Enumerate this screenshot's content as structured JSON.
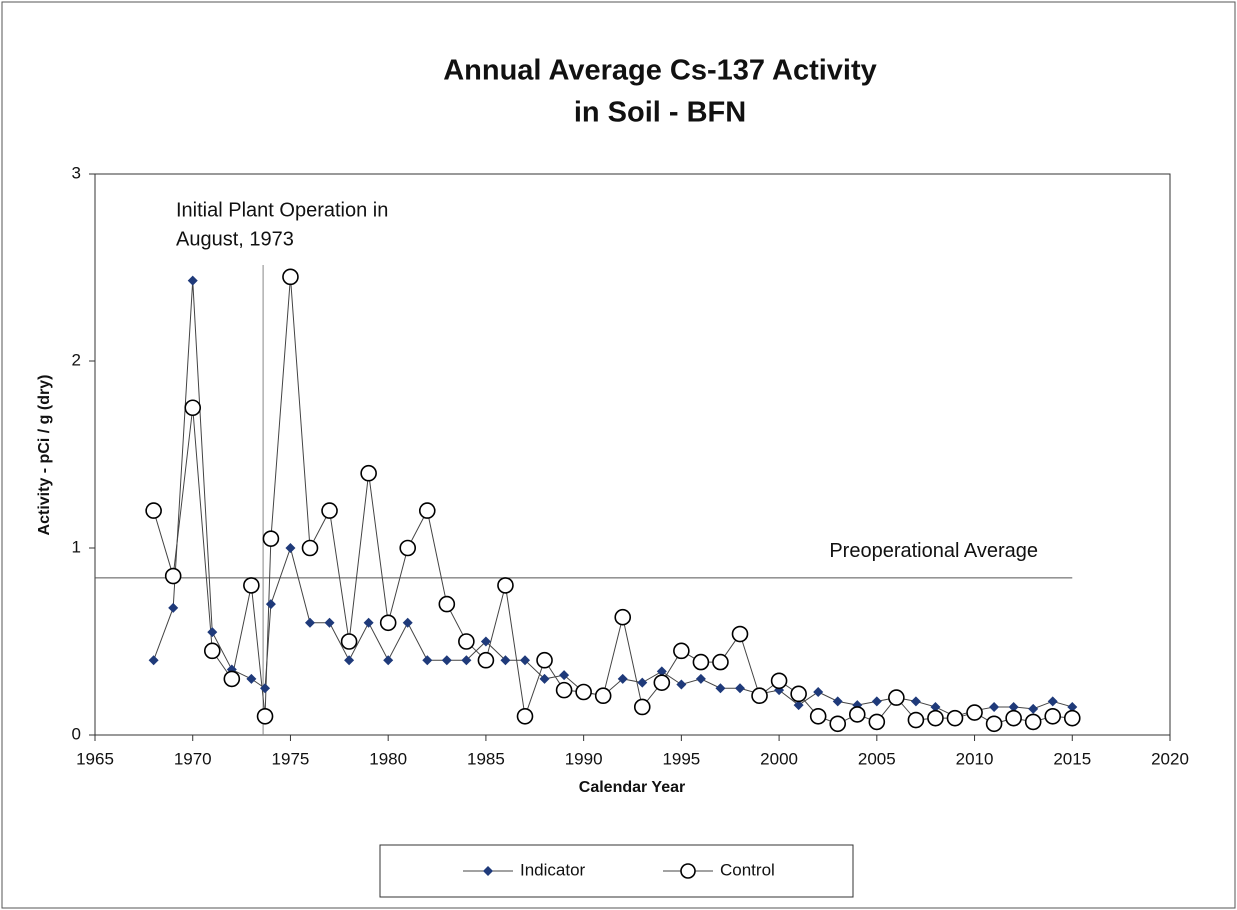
{
  "chart_data": {
    "type": "line",
    "title": [
      "Annual Average Cs-137 Activity",
      "in Soil - BFN"
    ],
    "x_label": "Calendar Year",
    "y_label": "Activity  -  pCi / g (dry)",
    "x": [
      1968,
      1969,
      1970,
      1971,
      1972,
      1973,
      1973.7,
      1974,
      1975,
      1976,
      1977,
      1978,
      1979,
      1980,
      1981,
      1982,
      1983,
      1984,
      1985,
      1986,
      1987,
      1988,
      1989,
      1990,
      1991,
      1992,
      1993,
      1994,
      1995,
      1996,
      1997,
      1998,
      1999,
      2000,
      2001,
      2002,
      2003,
      2004,
      2005,
      2006,
      2007,
      2008,
      2009,
      2010,
      2011,
      2012,
      2013,
      2014,
      2015
    ],
    "series": [
      {
        "name": "Indicator",
        "color": "#1f3a7a",
        "marker": "diamond",
        "values": [
          0.4,
          0.68,
          2.43,
          0.55,
          0.35,
          0.3,
          0.25,
          0.7,
          1.0,
          0.6,
          0.6,
          0.4,
          0.6,
          0.4,
          0.6,
          0.4,
          0.4,
          0.4,
          0.5,
          0.4,
          0.4,
          0.3,
          0.32,
          0.23,
          0.21,
          0.3,
          0.28,
          0.34,
          0.27,
          0.3,
          0.25,
          0.25,
          0.22,
          0.24,
          0.16,
          0.23,
          0.18,
          0.16,
          0.18,
          0.2,
          0.18,
          0.15,
          0.1,
          0.13,
          0.15,
          0.15,
          0.14,
          0.18,
          0.15
        ]
      },
      {
        "name": "Control",
        "color": "#000000",
        "marker": "circle",
        "values": [
          1.2,
          0.85,
          1.75,
          0.45,
          0.3,
          0.8,
          0.1,
          1.05,
          2.45,
          1.0,
          1.2,
          0.5,
          1.4,
          0.6,
          1.0,
          1.2,
          0.7,
          0.5,
          0.4,
          0.8,
          0.1,
          0.4,
          0.24,
          0.23,
          0.21,
          0.63,
          0.15,
          0.28,
          0.45,
          0.39,
          0.39,
          0.54,
          0.21,
          0.29,
          0.22,
          0.1,
          0.06,
          0.11,
          0.07,
          0.2,
          0.08,
          0.09,
          0.09,
          0.12,
          0.06,
          0.09,
          0.07,
          0.1,
          0.09
        ]
      }
    ],
    "reference_line": {
      "value": 0.84,
      "xrange": [
        1965,
        2015
      ],
      "label": "Preoperational Average"
    },
    "event_marker": {
      "x": 1973.6,
      "label": [
        "Initial Plant Operation in",
        "August, 1973"
      ]
    },
    "xlim": [
      1965,
      2020
    ],
    "xticks": [
      1965,
      1970,
      1975,
      1980,
      1985,
      1990,
      1995,
      2000,
      2005,
      2010,
      2015,
      2020
    ],
    "ylim": [
      0,
      3
    ],
    "yticks": [
      0,
      1,
      2,
      3
    ],
    "legend": "bottom"
  }
}
